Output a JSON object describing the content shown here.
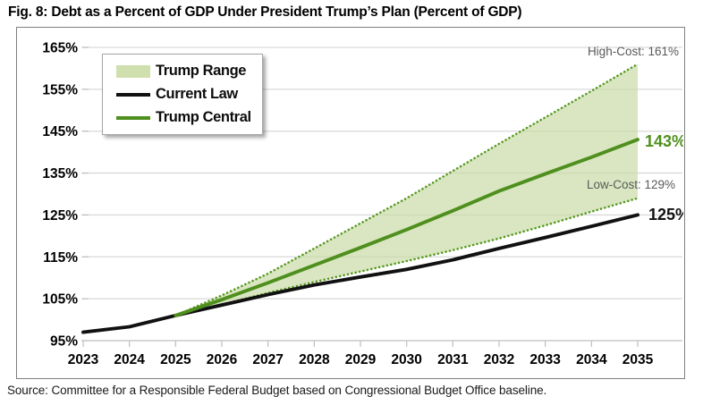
{
  "title": "Fig. 8: Debt as a Percent of GDP Under President Trump’s Plan (Percent of GDP)",
  "source": "Source: Committee for a Responsible Federal Budget based on Congressional Budget Office baseline.",
  "legend": {
    "items": [
      {
        "label": "Trump Range",
        "type": "area",
        "color": "#cfe0ae"
      },
      {
        "label": "Current Law",
        "type": "line",
        "color": "#111111"
      },
      {
        "label": "Trump Central",
        "type": "line",
        "color": "#4e8f1d"
      }
    ]
  },
  "colors": {
    "range_fill": "#c9dca6",
    "current_law": "#111111",
    "trump_central": "#4e8f1d",
    "dotted_bound": "#5a9a24",
    "annotation_gray": "#595959",
    "gridline": "#d9d9d9",
    "axis": "#bfbfbf",
    "border": "#7f7f7f"
  },
  "annotations": [
    {
      "id": "high_cost",
      "text": "High-Cost: 161%",
      "color": "#595959"
    },
    {
      "id": "low_cost",
      "text": "Low-Cost: 129%",
      "color": "#595959"
    },
    {
      "id": "central_end",
      "text": "143%",
      "color": "#4e8f1d"
    },
    {
      "id": "current_end",
      "text": "125%",
      "color": "#111111"
    }
  ],
  "chart_data": {
    "type": "line",
    "title": "Fig. 8: Debt as a Percent of GDP Under President Trump’s Plan (Percent of GDP)",
    "xlabel": "",
    "ylabel": "Percent of GDP",
    "x": [
      2023,
      2024,
      2025,
      2026,
      2027,
      2028,
      2029,
      2030,
      2031,
      2032,
      2033,
      2034,
      2035
    ],
    "xlim": [
      2023,
      2035
    ],
    "ylim": [
      95,
      165
    ],
    "yticks": [
      95,
      105,
      115,
      125,
      135,
      145,
      155,
      165
    ],
    "ytick_suffix": "%",
    "grid": true,
    "legend_position": "top-left",
    "series": [
      {
        "id": "current_law",
        "name": "Current Law",
        "style": "solid",
        "color": "#111111",
        "values": [
          97.0,
          98.3,
          101.0,
          103.5,
          106.0,
          108.3,
          110.2,
          112.0,
          114.3,
          117.0,
          119.6,
          122.3,
          125.0
        ]
      },
      {
        "id": "trump_central",
        "name": "Trump Central",
        "style": "solid",
        "color": "#4e8f1d",
        "values": [
          null,
          null,
          101.0,
          104.8,
          108.8,
          113.0,
          117.2,
          121.5,
          126.0,
          130.7,
          134.8,
          138.8,
          143.0
        ]
      },
      {
        "id": "high_cost",
        "name": "Trump Range High (High-Cost)",
        "style": "dotted",
        "color": "#5a9a24",
        "values": [
          null,
          null,
          101.0,
          105.8,
          111.0,
          117.0,
          123.0,
          129.0,
          135.5,
          142.0,
          148.3,
          154.6,
          161.0
        ]
      },
      {
        "id": "low_cost",
        "name": "Trump Range Low (Low-Cost)",
        "style": "dotted",
        "color": "#5a9a24",
        "values": [
          null,
          null,
          101.0,
          103.6,
          106.4,
          109.0,
          111.5,
          114.0,
          116.6,
          119.4,
          122.5,
          125.8,
          129.0
        ]
      }
    ],
    "range_band": {
      "upper": "high_cost",
      "lower": "low_cost",
      "label": "Trump Range"
    },
    "end_labels": {
      "trump_central": "143%",
      "current_law": "125%",
      "high_cost": "161%",
      "low_cost": "129%"
    }
  }
}
